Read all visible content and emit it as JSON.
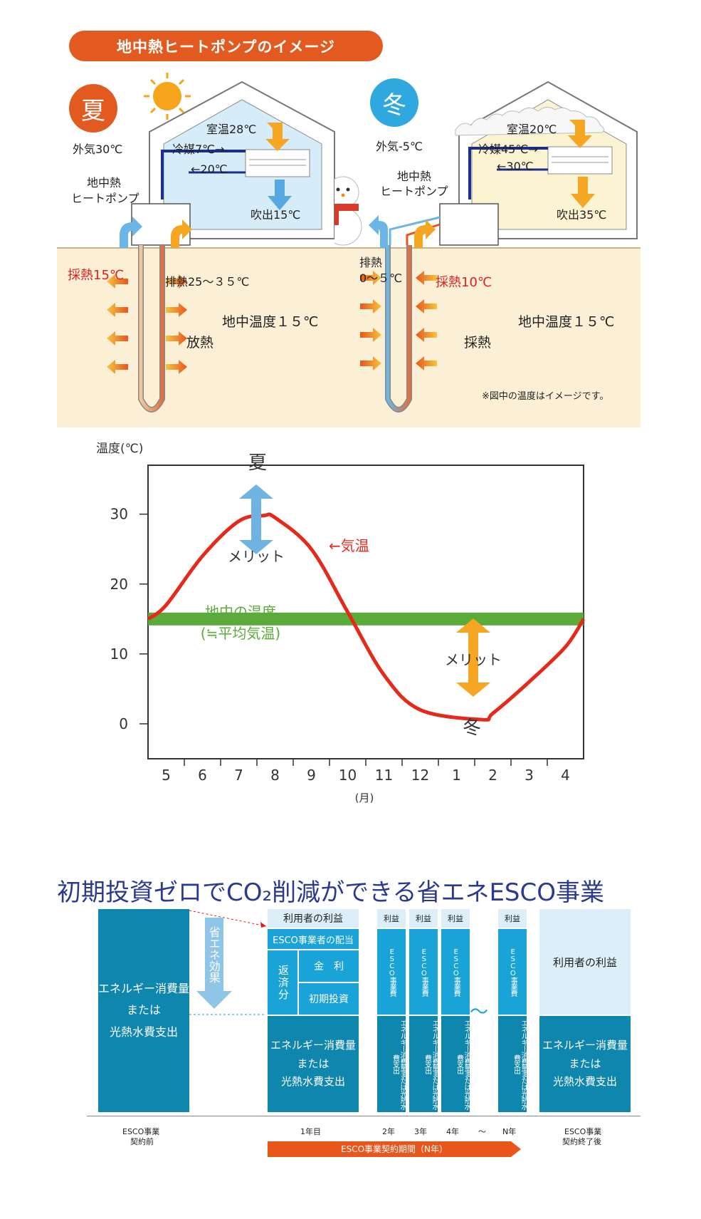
{
  "header": {
    "title": "地中熱ヒートポンプのイメージ"
  },
  "summer": {
    "badge": "夏",
    "outside": "外気30℃",
    "room": "室温28℃",
    "refrigerant": "冷媒7℃→",
    "return": "←20℃",
    "blow": "吹出15℃",
    "unit_label_1": "地中熱",
    "unit_label_2": "ヒートポンプ",
    "collect": "採熱15℃",
    "exhaust": "排熱25～３５℃",
    "ground": "地中温度１５℃",
    "action": "放熱"
  },
  "winter": {
    "badge": "冬",
    "outside": "外気-5℃",
    "room": "室温20℃",
    "refrigerant": "冷媒45℃→",
    "return": "←30℃",
    "blow": "吹出35℃",
    "unit_label_1": "地中熱",
    "unit_label_2": "ヒートポンプ",
    "exhaust_1": "排熱",
    "exhaust_2": "0～５℃",
    "collect": "採熱10℃",
    "ground": "地中温度１５℃",
    "action": "採熱"
  },
  "note": "※図中の温度はイメージです。",
  "colors": {
    "orange": "#e25a1f",
    "summer_badge": "#e25a1f",
    "winter_badge": "#2fa8e0",
    "air_red": "#e52a1c",
    "ground_green": "#5aab3a",
    "merit_blue": "#6fb3e3",
    "merit_orange": "#f5a623",
    "esco_dark": "#0f86ae",
    "esco_mid": "#1aa3d7",
    "esco_light": "#dceff8",
    "title_blue": "#2b3a8f"
  },
  "chart_data": {
    "type": "line",
    "ylabel": "温度(℃)",
    "xlabel": "(月)",
    "categories": [
      "5",
      "6",
      "7",
      "8",
      "9",
      "10",
      "11",
      "12",
      "1",
      "2",
      "3",
      "4"
    ],
    "yticks": [
      "0",
      "10",
      "20",
      "30"
    ],
    "ylim": [
      -5,
      37
    ],
    "series": [
      {
        "name": "←気温",
        "x": [
          4.5,
          5,
          6,
          7,
          7.7,
          8,
          9,
          10,
          11,
          12,
          1.7,
          2,
          3,
          4,
          4.5
        ],
        "values": [
          15,
          17,
          24,
          29,
          29.8,
          29.5,
          25,
          16,
          7,
          2,
          0.6,
          1.5,
          6,
          11,
          15
        ],
        "color": "#e52a1c"
      },
      {
        "name": "地中の温度",
        "values": [
          15,
          15,
          15,
          15,
          15,
          15,
          15,
          15,
          15,
          15,
          15,
          15
        ],
        "color": "#5aab3a"
      }
    ],
    "ground_label_1": "地中の温度",
    "ground_label_2": "(≒平均気温)",
    "summer_label": "夏",
    "winter_label": "冬",
    "merit": "メリット",
    "grid": false
  },
  "esco": {
    "title": "初期投資ゼロでCO₂削減ができる省エネESCO事業",
    "before_box": [
      "エネルギー消費量",
      "または",
      "光熱水費支出"
    ],
    "effect": "省エネ効果",
    "y1_user_profit": "利用者の利益",
    "y1_esco_share": "ESCO事業者の配当",
    "y1_repay": "返済分",
    "y1_interest": "金　利",
    "y1_initial": "初期投資",
    "y1_energy": [
      "エネルギー消費量",
      "または",
      "光熱水費支出"
    ],
    "small_profit": "利益",
    "small_esco": "ESCO事業費",
    "small_energy": "エネルギー消費量または光熱水費支出",
    "after_user_profit": "利用者の利益",
    "after_energy": [
      "エネルギー消費量",
      "または",
      "光熱水費支出"
    ],
    "tilde": "～",
    "x_labels": {
      "before_1": "ESCO事業",
      "before_2": "契約前",
      "y1": "1年目",
      "y2": "2年",
      "y3": "3年",
      "y4": "4年",
      "tilde": "～",
      "yn": "N年",
      "after_1": "ESCO事業",
      "after_2": "契約終了後"
    },
    "period": "ESCO事業契約期間（N年）"
  }
}
